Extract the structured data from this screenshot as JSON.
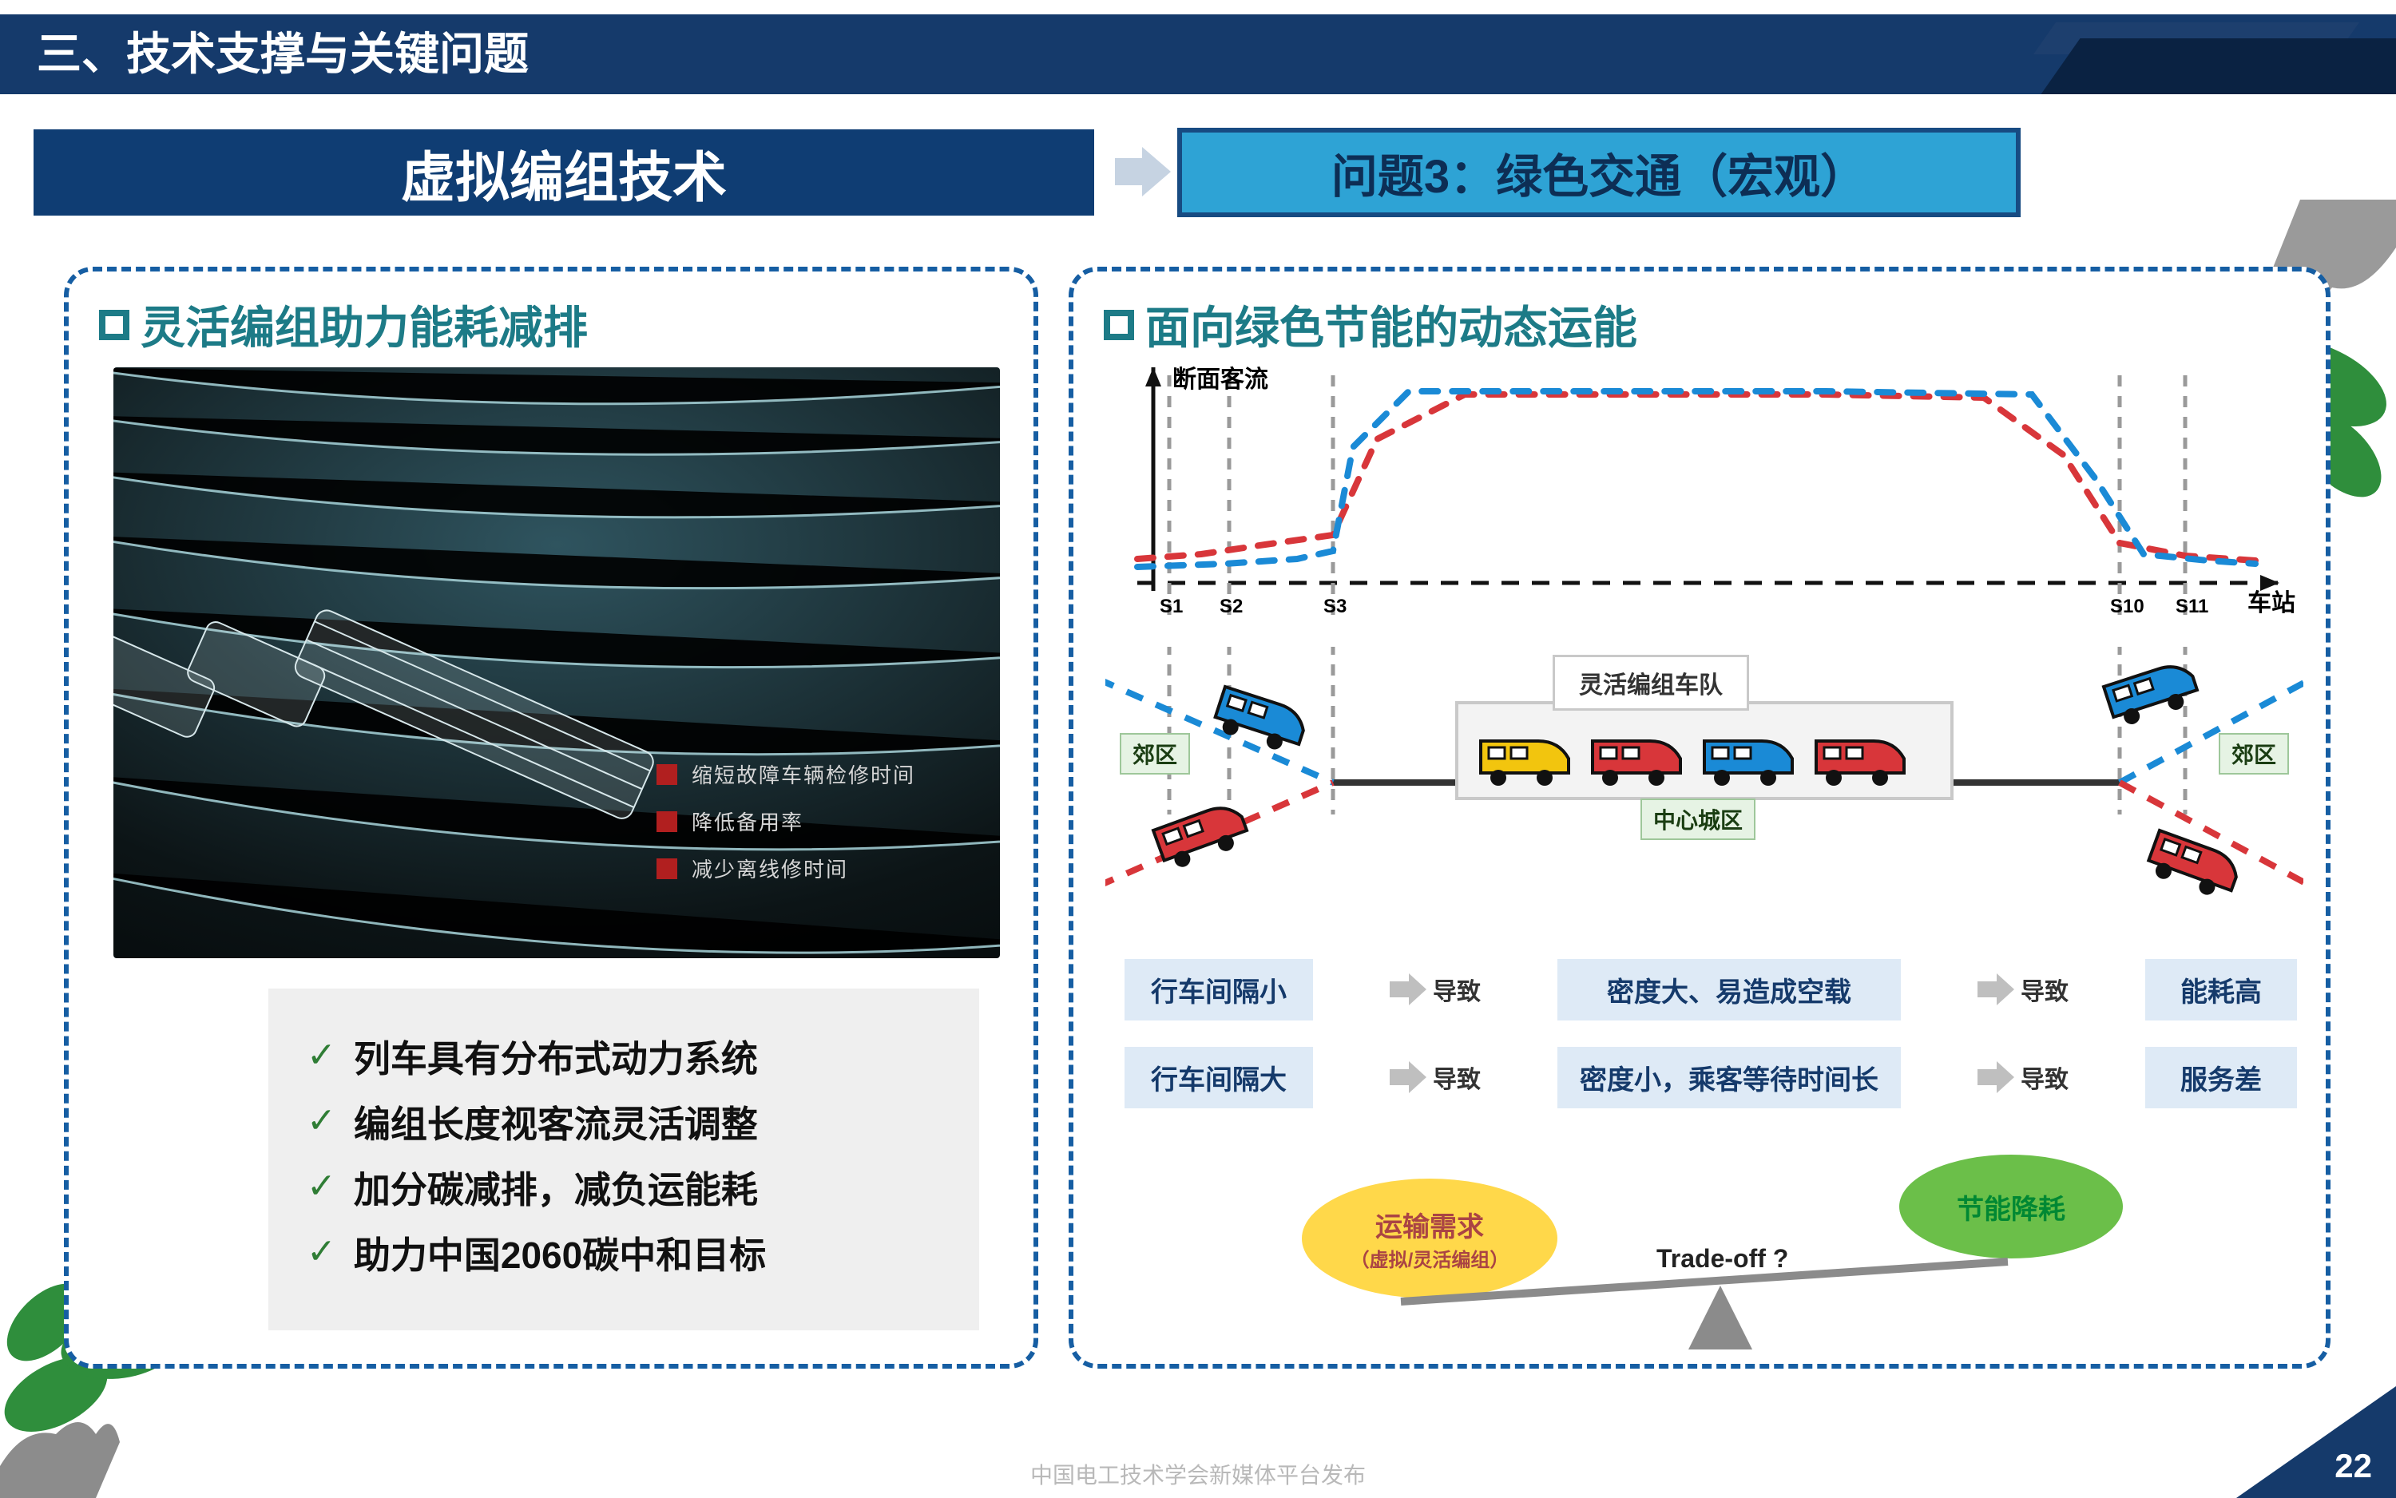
{
  "colors": {
    "navy": "#153a6b",
    "navy2": "#0f3d73",
    "teal": "#1d7b87",
    "cyan": "#2ea3d5",
    "dash": "#165ea3",
    "red": "#d8363a",
    "blue": "#1a8ad6",
    "grey": "#9a9a9a",
    "green_fill": "#6bbf49",
    "yellow_fill": "#ffd84a",
    "pill": "#deeaf6",
    "zone": "#e6f3e4"
  },
  "header": {
    "title": "三、技术支撑与关键问题"
  },
  "subheader": {
    "title": "虚拟编组技术"
  },
  "question_box": {
    "text": "问题3：绿色交通（宏观）"
  },
  "left_panel": {
    "title": "灵活编组助力能耗减排",
    "image_legend": [
      "缩短故障车辆检修时间",
      "降低备用率",
      "减少离线修时间"
    ],
    "bullets": [
      "列车具有分布式动力系统",
      "编组长度视客流灵活调整",
      "加分碳减排，减负运能耗",
      "助力中国2060碳中和目标"
    ]
  },
  "right_panel": {
    "title": "面向绿色节能的动态运能",
    "chart": {
      "type": "line",
      "y_label": "断面客流",
      "x_label": "车站",
      "x_ticks": [
        "S1",
        "S2",
        "S3",
        "S10",
        "S11"
      ],
      "x_tick_positions": [
        80,
        155,
        285,
        1270,
        1352
      ],
      "gridline_x": [
        80,
        155,
        285,
        1270,
        1352
      ],
      "red_series": [
        [
          40,
          250
        ],
        [
          120,
          244
        ],
        [
          200,
          232
        ],
        [
          285,
          220
        ],
        [
          340,
          100
        ],
        [
          450,
          44
        ],
        [
          900,
          44
        ],
        [
          1100,
          48
        ],
        [
          1200,
          120
        ],
        [
          1270,
          230
        ],
        [
          1352,
          246
        ],
        [
          1440,
          252
        ]
      ],
      "blue_series": [
        [
          40,
          260
        ],
        [
          150,
          256
        ],
        [
          240,
          250
        ],
        [
          285,
          240
        ],
        [
          310,
          110
        ],
        [
          380,
          40
        ],
        [
          900,
          40
        ],
        [
          1160,
          44
        ],
        [
          1240,
          150
        ],
        [
          1300,
          244
        ],
        [
          1380,
          252
        ],
        [
          1440,
          256
        ]
      ],
      "line_width": 8,
      "dash": "20 18",
      "axis_color": "#111"
    },
    "scheme": {
      "zone_left": "郊区",
      "zone_right": "郊区",
      "fleet": "灵活编组车队",
      "center": "中心城区",
      "train_colors": [
        "#f2c50e",
        "#d8363a",
        "#1a8ad6"
      ]
    },
    "flow": [
      {
        "a": "行车间隔小",
        "arr": "导致",
        "b": "密度大、易造成空载",
        "arr2": "导致",
        "c": "能耗高"
      },
      {
        "a": "行车间隔大",
        "arr": "导致",
        "b": "密度小，乘客等待时间长",
        "arr2": "导致",
        "c": "服务差"
      }
    ],
    "tradeoff": {
      "left": "运输需求",
      "left_sub": "（虚拟/灵活编组）",
      "right": "节能降耗",
      "question": "Trade-off ?"
    }
  },
  "page_number": "22",
  "watermark": "中国电工技术学会新媒体平台发布"
}
